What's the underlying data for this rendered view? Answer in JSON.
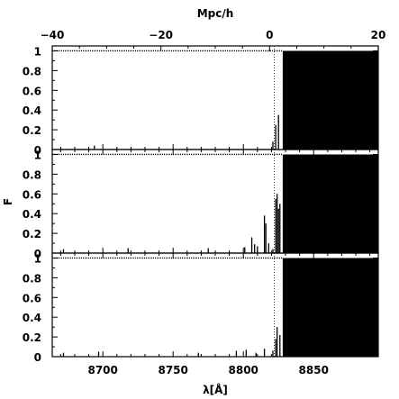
{
  "chart_data": {
    "type": "area",
    "top_axis": {
      "label": "Mpc/h",
      "range": [
        -40,
        20
      ],
      "ticks": [
        -40,
        -20,
        0,
        20
      ],
      "minor_step": 5
    },
    "bottom_axis": {
      "label": "λ[Å]",
      "range": [
        8664,
        8896
      ],
      "ticks": [
        8700,
        8750,
        8800,
        8850
      ],
      "minor_step": 10
    },
    "ylabel": "F",
    "reference_line_x": 8822,
    "colors": {
      "ink": "#000000",
      "background": "#ffffff"
    },
    "panels": [
      {
        "ylim": [
          0,
          1.05
        ],
        "y_ticks": [
          "0",
          "0.2",
          "0.4",
          "0.6",
          "0.8",
          "1"
        ],
        "unabsorbed_flux": 1,
        "dark_start": 8828,
        "spikes": [
          {
            "x": 8694,
            "y": 0.04
          },
          {
            "x": 8821,
            "y": 0.08
          },
          {
            "x": 8823,
            "y": 0.25
          },
          {
            "x": 8825,
            "y": 0.35
          }
        ]
      },
      {
        "ylim": [
          0,
          1.05
        ],
        "y_ticks": [
          "0",
          "0.2",
          "0.4",
          "0.6",
          "0.8",
          "1"
        ],
        "unabsorbed_flux": 1,
        "dark_start": 8828,
        "spikes": [
          {
            "x": 8672,
            "y": 0.04
          },
          {
            "x": 8718,
            "y": 0.05
          },
          {
            "x": 8775,
            "y": 0.05
          },
          {
            "x": 8801,
            "y": 0.06
          },
          {
            "x": 8806,
            "y": 0.16
          },
          {
            "x": 8808,
            "y": 0.09
          },
          {
            "x": 8810,
            "y": 0.07
          },
          {
            "x": 8815,
            "y": 0.38
          },
          {
            "x": 8816,
            "y": 0.3
          },
          {
            "x": 8818,
            "y": 0.1
          },
          {
            "x": 8821,
            "y": 0.04
          },
          {
            "x": 8823,
            "y": 0.55
          },
          {
            "x": 8824,
            "y": 0.6
          },
          {
            "x": 8825,
            "y": 0.45
          },
          {
            "x": 8826,
            "y": 0.5
          }
        ]
      },
      {
        "ylim": [
          0,
          1.05
        ],
        "y_ticks": [
          "0",
          "0.2",
          "0.4",
          "0.6",
          "0.8",
          "1"
        ],
        "unabsorbed_flux": 1,
        "dark_start": 8828,
        "spikes": [
          {
            "x": 8672,
            "y": 0.04
          },
          {
            "x": 8697,
            "y": 0.05
          },
          {
            "x": 8768,
            "y": 0.04
          },
          {
            "x": 8795,
            "y": 0.06
          },
          {
            "x": 8802,
            "y": 0.07
          },
          {
            "x": 8809,
            "y": 0.04
          },
          {
            "x": 8815,
            "y": 0.08
          },
          {
            "x": 8821,
            "y": 0.06
          },
          {
            "x": 8823,
            "y": 0.18
          },
          {
            "x": 8824,
            "y": 0.3
          },
          {
            "x": 8826,
            "y": 0.22
          }
        ]
      }
    ]
  }
}
